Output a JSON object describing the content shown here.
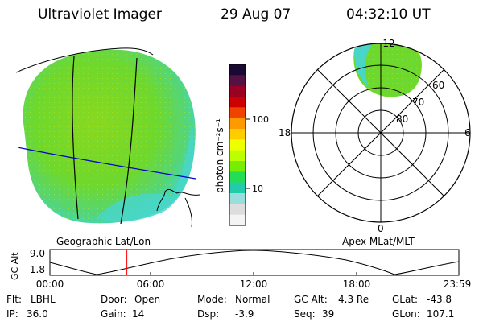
{
  "header": {
    "title": "Ultraviolet Imager",
    "date": "29 Aug 07",
    "time": "04:32:10 UT"
  },
  "geo_map": {
    "caption": "Geographic Lat/Lon"
  },
  "polar_map": {
    "caption": "Apex MLat/MLT",
    "mlt_labels": {
      "top": "12",
      "left": "18",
      "right": "6",
      "bottom": "0"
    },
    "lat_labels": [
      "60",
      "70",
      "80"
    ]
  },
  "colorbar": {
    "unit_label": "photon cm⁻²s⁻¹",
    "ticks": [
      "100",
      "10"
    ],
    "colors_top_to_bottom": [
      "#1a0a33",
      "#551144",
      "#990022",
      "#cc0000",
      "#ee4400",
      "#ff9900",
      "#ffcc00",
      "#eeff00",
      "#bbff00",
      "#77ee00",
      "#22dd55",
      "#22ccaa",
      "#99dddd",
      "#dddddd",
      "#f4f4f4"
    ]
  },
  "altitude_plot": {
    "ylabel": "GC Alt",
    "y_ticks": [
      "9.0",
      "1.8"
    ],
    "x_ticks": [
      "00:00",
      "06:00",
      "12:00",
      "18:00",
      "23:59"
    ],
    "marker_time": "04:32",
    "marker_color": "#ff0000"
  },
  "status": {
    "filter_label": "Flt:",
    "filter_value": "LBHL",
    "ip_label": "IP:",
    "ip_value": "36.0",
    "door_label": "Door:",
    "door_value": "Open",
    "gain_label": "Gain:",
    "gain_value": "14",
    "mode_label": "Mode:",
    "mode_value": "Normal",
    "dsp_label": "Dsp:",
    "dsp_value": "-3.9",
    "gcalt_label": "GC Alt:",
    "gcalt_value": "4.3 Re",
    "seq_label": "Seq:",
    "seq_value": "39",
    "glat_label": "GLat:",
    "glat_value": "-43.8",
    "glon_label": "GLon:",
    "glon_value": "107.1"
  },
  "colors": {
    "aurora_green": "#7ddc22",
    "edge_cyan": "#44ddcc",
    "grid_line": "#000000",
    "lat_line": "#0000cc"
  }
}
